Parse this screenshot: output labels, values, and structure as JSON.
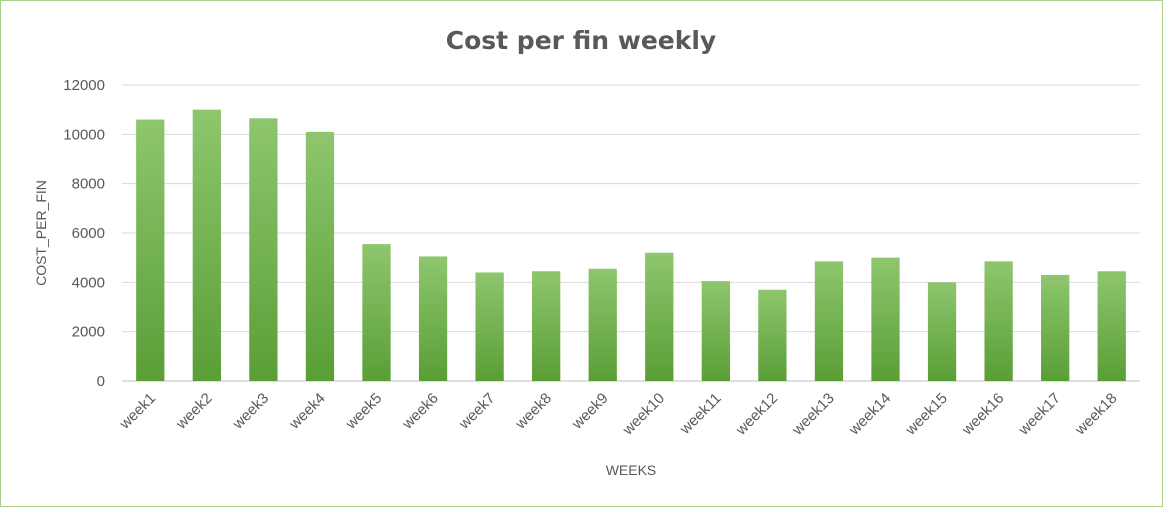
{
  "chart_data": {
    "type": "bar",
    "title": "Cost per fin weekly",
    "xlabel": "WEEKS",
    "ylabel": "COST_PER_FIN",
    "categories": [
      "week1",
      "week2",
      "week3",
      "week4",
      "week5",
      "week6",
      "week7",
      "week8",
      "week9",
      "week10",
      "week11",
      "week12",
      "week13",
      "week14",
      "week15",
      "week16",
      "week17",
      "week18"
    ],
    "values": [
      10600,
      11000,
      10650,
      10100,
      5550,
      5050,
      4400,
      4450,
      4550,
      5200,
      4050,
      3700,
      4850,
      5000,
      4000,
      4850,
      4300,
      4450
    ],
    "ylim": [
      0,
      12000
    ],
    "yticks": [
      0,
      2000,
      4000,
      6000,
      8000,
      10000,
      12000
    ],
    "grid": true,
    "legend": "none",
    "colors": {
      "bar_top": "#8ec66e",
      "bar_bottom": "#5a9e36",
      "gridline": "#d9d9d9",
      "axis": "#bfbfbf",
      "text": "#595959",
      "border": "#a9d18e"
    }
  }
}
